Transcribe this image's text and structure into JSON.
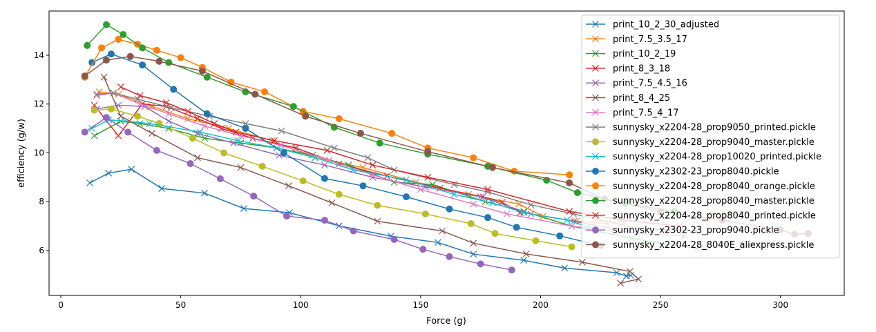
{
  "chart_data": {
    "type": "line",
    "title": "",
    "xlabel": "Force (g)",
    "ylabel": "efficiency (g/w)",
    "xlim": [
      -4.9,
      326.6
    ],
    "ylim": [
      4.16,
      15.81
    ],
    "xticks": [
      0,
      50,
      100,
      150,
      200,
      250,
      300
    ],
    "yticks": [
      6,
      8,
      10,
      12,
      14
    ],
    "grid": false,
    "legend_position": "top-right",
    "series": [
      {
        "name": "print_10_2_30_adjusted",
        "color": "#1f77b4",
        "marker": "x",
        "points": [
          [
            12.1,
            8.77
          ],
          [
            19.9,
            9.17
          ],
          [
            29.4,
            9.33
          ],
          [
            42.1,
            8.54
          ],
          [
            59.9,
            8.35
          ],
          [
            76.3,
            7.72
          ],
          [
            95.3,
            7.55
          ],
          [
            116,
            7.01
          ],
          [
            137.6,
            6.59
          ],
          [
            157.2,
            6.33
          ],
          [
            172,
            5.85
          ],
          [
            193,
            5.6
          ],
          [
            210,
            5.28
          ],
          [
            231.8,
            5.09
          ],
          [
            235.8,
            4.95
          ],
          [
            237.6,
            4.98
          ]
        ]
      },
      {
        "name": "print_7.5_3.5_17",
        "color": "#ff7f0e",
        "marker": "x",
        "points": [
          [
            16,
            12.5
          ],
          [
            24,
            12.4
          ],
          [
            38,
            11.9
          ],
          [
            53,
            11.4
          ],
          [
            70,
            11.0
          ],
          [
            88,
            10.5
          ],
          [
            106,
            9.8
          ],
          [
            126,
            9.4
          ],
          [
            148,
            8.8
          ],
          [
            170,
            8.3
          ],
          [
            191,
            7.9
          ],
          [
            201,
            7.4
          ],
          [
            215,
            7.2
          ],
          [
            228,
            7.1
          ]
        ]
      },
      {
        "name": "print_10_2_19",
        "color": "#2ca02c",
        "marker": "x",
        "points": [
          [
            14,
            10.7
          ],
          [
            25,
            11.3
          ],
          [
            33,
            11.2
          ],
          [
            45,
            11.0
          ],
          [
            60,
            10.6
          ],
          [
            75,
            10.4
          ],
          [
            90,
            10.2
          ],
          [
            105,
            9.9
          ],
          [
            120,
            9.5
          ],
          [
            139,
            8.8
          ],
          [
            155,
            8.7
          ],
          [
            177,
            8.0
          ],
          [
            193,
            7.6
          ],
          [
            213,
            7.0
          ],
          [
            238,
            6.5
          ],
          [
            265,
            6.08
          ]
        ]
      },
      {
        "name": "print_8_3_18",
        "color": "#d62728",
        "marker": "x",
        "points": [
          [
            14,
            11.95
          ],
          [
            24,
            10.7
          ],
          [
            34,
            12.0
          ],
          [
            44,
            11.9
          ],
          [
            57,
            11.4
          ],
          [
            67,
            11.0
          ],
          [
            80,
            10.6
          ],
          [
            98,
            10.2
          ],
          [
            116,
            9.55
          ],
          [
            136,
            9.05
          ],
          [
            158,
            8.55
          ],
          [
            176,
            8.2
          ],
          [
            184,
            7.97
          ],
          [
            191.5,
            7.55
          ]
        ]
      },
      {
        "name": "print_7.5_4.5_16",
        "color": "#9467bd",
        "marker": "x",
        "points": [
          [
            15,
            11.8
          ],
          [
            24,
            11.95
          ],
          [
            35,
            11.9
          ],
          [
            45,
            11.3
          ],
          [
            57,
            10.8
          ],
          [
            72,
            10.4
          ],
          [
            91,
            9.9
          ],
          [
            110,
            9.5
          ],
          [
            130,
            9.0
          ],
          [
            152,
            8.6
          ],
          [
            175,
            8.2
          ],
          [
            196,
            7.5
          ],
          [
            214,
            7.2
          ],
          [
            240,
            6.7
          ],
          [
            260,
            6.6
          ]
        ]
      },
      {
        "name": "print_8_4_25",
        "color": "#8c564b",
        "marker": "x",
        "points": [
          [
            18,
            13.1
          ],
          [
            25,
            11.5
          ],
          [
            38,
            10.8
          ],
          [
            57,
            9.8
          ],
          [
            75,
            9.4
          ],
          [
            95,
            8.65
          ],
          [
            113,
            7.95
          ],
          [
            132,
            7.2
          ],
          [
            159,
            6.8
          ],
          [
            172,
            6.3
          ],
          [
            194,
            5.86
          ],
          [
            217.4,
            5.52
          ],
          [
            237.3,
            5.14
          ],
          [
            240.8,
            4.83
          ],
          [
            233.3,
            4.66
          ]
        ]
      },
      {
        "name": "print_7.5_4_17",
        "color": "#e377c2",
        "marker": "x",
        "points": [
          [
            15,
            12.35
          ],
          [
            22,
            12.45
          ],
          [
            33,
            12.0
          ],
          [
            45,
            11.6
          ],
          [
            60,
            11.1
          ],
          [
            75,
            10.7
          ],
          [
            92,
            10.3
          ],
          [
            112,
            9.7
          ],
          [
            130,
            9.1
          ],
          [
            150,
            8.5
          ],
          [
            172,
            7.9
          ],
          [
            186,
            7.5
          ],
          [
            213,
            7.0
          ],
          [
            230,
            6.8
          ]
        ]
      },
      {
        "name": "sunnysky_x2204-28_prop9050_printed.pickle",
        "color": "#7f7f7f",
        "marker": "x",
        "points": [
          [
            15,
            12.4
          ],
          [
            22,
            12.45
          ],
          [
            32,
            12.2
          ],
          [
            46,
            11.85
          ],
          [
            62,
            11.5
          ],
          [
            77,
            11.2
          ],
          [
            92,
            10.9
          ],
          [
            114,
            10.2
          ],
          [
            128,
            9.8
          ],
          [
            139,
            9.3
          ],
          [
            164,
            8.7
          ],
          [
            178,
            8.4
          ],
          [
            196,
            7.87
          ],
          [
            213.7,
            7.5
          ],
          [
            241,
            6.9
          ],
          [
            265,
            6.8
          ]
        ]
      },
      {
        "name": "sunnysky_x2204-28_prop9040_master.pickle",
        "color": "#bcbd22",
        "marker": "o",
        "points": [
          [
            14,
            11.75
          ],
          [
            21,
            11.8
          ],
          [
            32,
            11.5
          ],
          [
            41,
            11.2
          ],
          [
            55,
            10.6
          ],
          [
            68,
            10.0
          ],
          [
            84,
            9.45
          ],
          [
            101,
            8.85
          ],
          [
            116,
            8.3
          ],
          [
            132,
            7.85
          ],
          [
            152,
            7.5
          ],
          [
            171,
            7.1
          ],
          [
            181,
            6.7
          ],
          [
            198,
            6.4
          ],
          [
            213,
            6.15
          ]
        ]
      },
      {
        "name": "sunnysky_x2204-28_prop10020_printed.pickle",
        "color": "#17becf",
        "marker": "x",
        "points": [
          [
            13,
            11.0
          ],
          [
            20,
            11.35
          ],
          [
            27,
            11.3
          ],
          [
            37,
            11.2
          ],
          [
            58,
            10.85
          ],
          [
            74,
            10.5
          ],
          [
            90,
            10.2
          ],
          [
            106,
            9.8
          ],
          [
            122,
            9.3
          ],
          [
            144,
            8.9
          ],
          [
            164,
            8.3
          ],
          [
            180,
            7.95
          ],
          [
            193,
            7.55
          ],
          [
            211,
            7.25
          ],
          [
            225,
            6.8
          ]
        ]
      },
      {
        "name": "sunnysky_x2302-23_prop8040.pickle",
        "color": "#1f77b4",
        "marker": "o",
        "points": [
          [
            13,
            13.7
          ],
          [
            21,
            14.05
          ],
          [
            34,
            13.6
          ],
          [
            47,
            12.6
          ],
          [
            61,
            11.6
          ],
          [
            77,
            11.0
          ],
          [
            93,
            10.0
          ],
          [
            110,
            8.95
          ],
          [
            126,
            8.65
          ],
          [
            144,
            8.2
          ],
          [
            162,
            7.7
          ],
          [
            178,
            7.35
          ],
          [
            190,
            6.95
          ],
          [
            208,
            6.6
          ],
          [
            225,
            6.2
          ]
        ]
      },
      {
        "name": "sunnysky_x2204-28_prop8040_orange.pickle",
        "color": "#ff7f0e",
        "marker": "o",
        "points": [
          [
            10,
            13.1
          ],
          [
            17,
            14.3
          ],
          [
            24,
            14.65
          ],
          [
            32,
            14.45
          ],
          [
            40,
            14.2
          ],
          [
            50,
            13.9
          ],
          [
            59,
            13.5
          ],
          [
            71,
            12.9
          ],
          [
            85,
            12.5
          ],
          [
            101,
            11.7
          ],
          [
            116,
            11.4
          ],
          [
            138,
            10.8
          ],
          [
            153,
            10.2
          ],
          [
            172,
            9.8
          ],
          [
            189,
            9.25
          ],
          [
            212,
            9.1
          ]
        ]
      },
      {
        "name": "sunnysky_x2204-28_prop8040_master.pickle",
        "color": "#2ca02c",
        "marker": "o",
        "points": [
          [
            11,
            14.4
          ],
          [
            19,
            15.25
          ],
          [
            26,
            14.85
          ],
          [
            34,
            14.3
          ],
          [
            45,
            13.7
          ],
          [
            61,
            13.1
          ],
          [
            77,
            12.5
          ],
          [
            97,
            11.9
          ],
          [
            114,
            11.05
          ],
          [
            133,
            10.4
          ],
          [
            153,
            9.95
          ],
          [
            178,
            9.45
          ],
          [
            202.5,
            8.88
          ],
          [
            215.4,
            8.37
          ],
          [
            235.3,
            7.92
          ],
          [
            256,
            7.6
          ]
        ]
      },
      {
        "name": "sunnysky_x2204-28_prop8040_printed.pickle",
        "color": "#d62728",
        "marker": "x",
        "points": [
          [
            25,
            12.7
          ],
          [
            33,
            12.35
          ],
          [
            44,
            12.05
          ],
          [
            53,
            11.7
          ],
          [
            64,
            11.2
          ],
          [
            73,
            10.85
          ],
          [
            89,
            10.5
          ],
          [
            111,
            10.1
          ],
          [
            130,
            9.5
          ],
          [
            153,
            9.0
          ],
          [
            178,
            8.5
          ],
          [
            212,
            7.6
          ],
          [
            234,
            7.25
          ],
          [
            258,
            7.0
          ]
        ]
      },
      {
        "name": "sunnysky_x2302-23_prop9040.pickle",
        "color": "#9467bd",
        "marker": "o",
        "points": [
          [
            10,
            10.85
          ],
          [
            19,
            11.45
          ],
          [
            28,
            10.85
          ],
          [
            40,
            10.1
          ],
          [
            54,
            9.56
          ],
          [
            66.5,
            8.94
          ],
          [
            80.4,
            8.23
          ],
          [
            94.2,
            7.41
          ],
          [
            110,
            7.24
          ],
          [
            122,
            6.8
          ],
          [
            139,
            6.45
          ],
          [
            151,
            6.05
          ],
          [
            162,
            5.75
          ],
          [
            175,
            5.45
          ],
          [
            188,
            5.2
          ]
        ]
      },
      {
        "name": "sunnysky_x2204-28_8040E_aliexpress.pickle",
        "color": "#8c564b",
        "marker": "o",
        "points": [
          [
            10,
            13.15
          ],
          [
            19,
            13.8
          ],
          [
            29,
            13.95
          ],
          [
            41,
            13.75
          ],
          [
            59,
            13.35
          ],
          [
            81,
            12.4
          ],
          [
            102,
            11.5
          ],
          [
            125,
            10.8
          ],
          [
            153,
            10.05
          ],
          [
            180,
            9.4
          ],
          [
            212,
            8.77
          ],
          [
            226.7,
            8.1
          ],
          [
            250,
            7.6
          ],
          [
            275.7,
            7.24
          ],
          [
            300,
            6.85
          ],
          [
            305.9,
            6.67
          ],
          [
            311.6,
            6.7
          ]
        ]
      }
    ]
  }
}
